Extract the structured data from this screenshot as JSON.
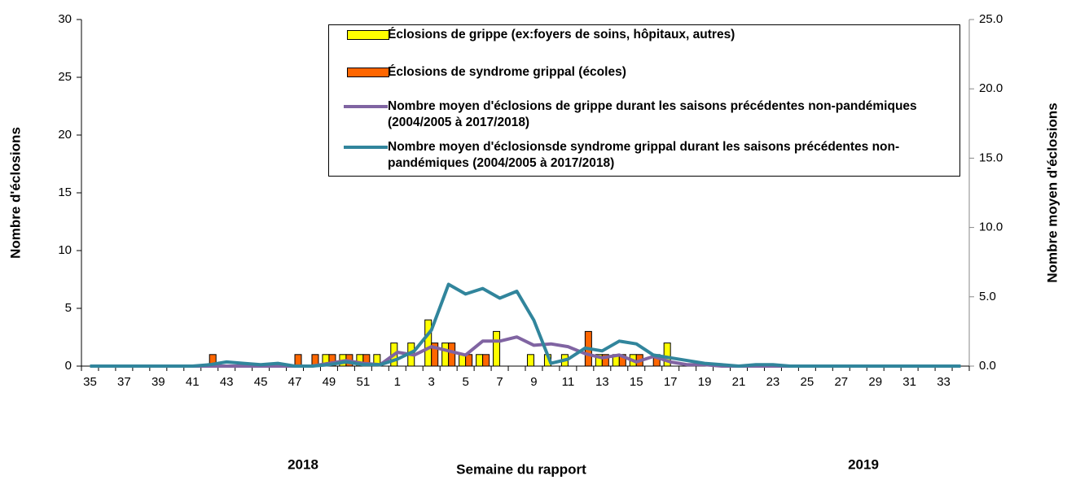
{
  "chart_data": {
    "type": "bar",
    "x_label": "Semaine du rapport",
    "y_label": "Nombre d'éclosions",
    "y2_label": "Nombre moyen d'éclosions",
    "year_labels": [
      "2018",
      "2019"
    ],
    "categories": [
      "35",
      null,
      "37",
      null,
      "39",
      null,
      "41",
      null,
      "43",
      null,
      "45",
      null,
      "47",
      null,
      "49",
      null,
      "51",
      null,
      "1",
      null,
      "3",
      null,
      "5",
      null,
      "7",
      null,
      "9",
      null,
      "11",
      null,
      "13",
      null,
      "15",
      null,
      "17",
      null,
      "19",
      null,
      "21",
      null,
      "23",
      null,
      "25",
      null,
      "27",
      null,
      "29",
      null,
      "31",
      null,
      "33",
      null
    ],
    "series": [
      {
        "name": "Éclosions de grippe (ex:foyers de soins, hôpitaux, autres)",
        "type": "bar",
        "color": "#ffff00",
        "values": [
          0,
          0,
          0,
          0,
          0,
          0,
          0,
          0,
          0,
          0,
          0,
          0,
          0,
          0,
          1,
          1,
          1,
          1,
          2,
          2,
          4,
          2,
          1,
          1,
          3,
          0,
          1,
          1,
          1,
          0,
          1,
          1,
          1,
          0,
          2,
          0,
          0,
          0,
          0,
          0,
          0,
          0,
          0,
          0,
          0,
          0,
          0,
          0,
          0,
          0,
          0,
          0
        ]
      },
      {
        "name": "Éclosions de syndrome grippal (écoles)",
        "type": "bar",
        "color": "#ff6600",
        "values": [
          0,
          0,
          0,
          0,
          0,
          0,
          0,
          1,
          0,
          0,
          0,
          0,
          1,
          1,
          1,
          1,
          1,
          0,
          0,
          0,
          2,
          2,
          1,
          1,
          0,
          0,
          0,
          0,
          0,
          3,
          1,
          1,
          1,
          1,
          0,
          0,
          0,
          0,
          0,
          0,
          0,
          0,
          0,
          0,
          0,
          0,
          0,
          0,
          0,
          0,
          0,
          0
        ]
      },
      {
        "name": "Nombre moyen d'éclosions de grippe durant les saisons précédentes non-pandémiques (2004/2005 à 2017/2018)",
        "type": "line",
        "axis": "y2",
        "color": "#8064a2",
        "values": [
          0,
          0,
          0,
          0,
          0,
          0,
          0,
          0,
          0,
          0,
          0,
          0,
          0,
          0,
          0.2,
          0.4,
          0.2,
          0.1,
          1.0,
          0.8,
          1.4,
          1.1,
          0.8,
          1.8,
          1.8,
          2.1,
          1.5,
          1.6,
          1.4,
          0.9,
          0.6,
          0.8,
          0.3,
          0.7,
          0.3,
          0.1,
          0.1,
          0,
          0,
          0,
          0,
          0,
          0,
          0,
          0,
          0,
          0,
          0,
          0,
          0,
          0,
          0
        ]
      },
      {
        "name": "Nombre moyen d'éclosionsde syndrome grippal  durant les saisons précédentes non-pandémiques (2004/2005 à 2017/2018)",
        "type": "line",
        "axis": "y2",
        "color": "#31859c",
        "values": [
          0,
          0,
          0,
          0,
          0,
          0,
          0,
          0.1,
          0.3,
          0.2,
          0.1,
          0.2,
          0,
          0,
          0.1,
          0.3,
          0.1,
          0.1,
          0.5,
          1.1,
          2.6,
          5.9,
          5.2,
          5.6,
          4.9,
          5.4,
          3.3,
          0.2,
          0.5,
          1.3,
          1.1,
          1.8,
          1.6,
          0.8,
          0.6,
          0.4,
          0.2,
          0.1,
          0,
          0.1,
          0.1,
          0,
          0,
          0,
          0,
          0,
          0,
          0,
          0,
          0,
          0,
          0
        ]
      }
    ],
    "ylim": [
      0,
      30
    ],
    "yticks": [
      0,
      5,
      10,
      15,
      20,
      25,
      30
    ],
    "y2lim": [
      0,
      25
    ],
    "y2ticks": [
      {
        "value": 0,
        "label": "0.0"
      },
      {
        "value": 5,
        "label": "5.0"
      },
      {
        "value": 10,
        "label": "10.0"
      },
      {
        "value": 15,
        "label": "15.0"
      },
      {
        "value": 20,
        "label": "20.0"
      },
      {
        "value": 25,
        "label": "25.0"
      }
    ]
  }
}
